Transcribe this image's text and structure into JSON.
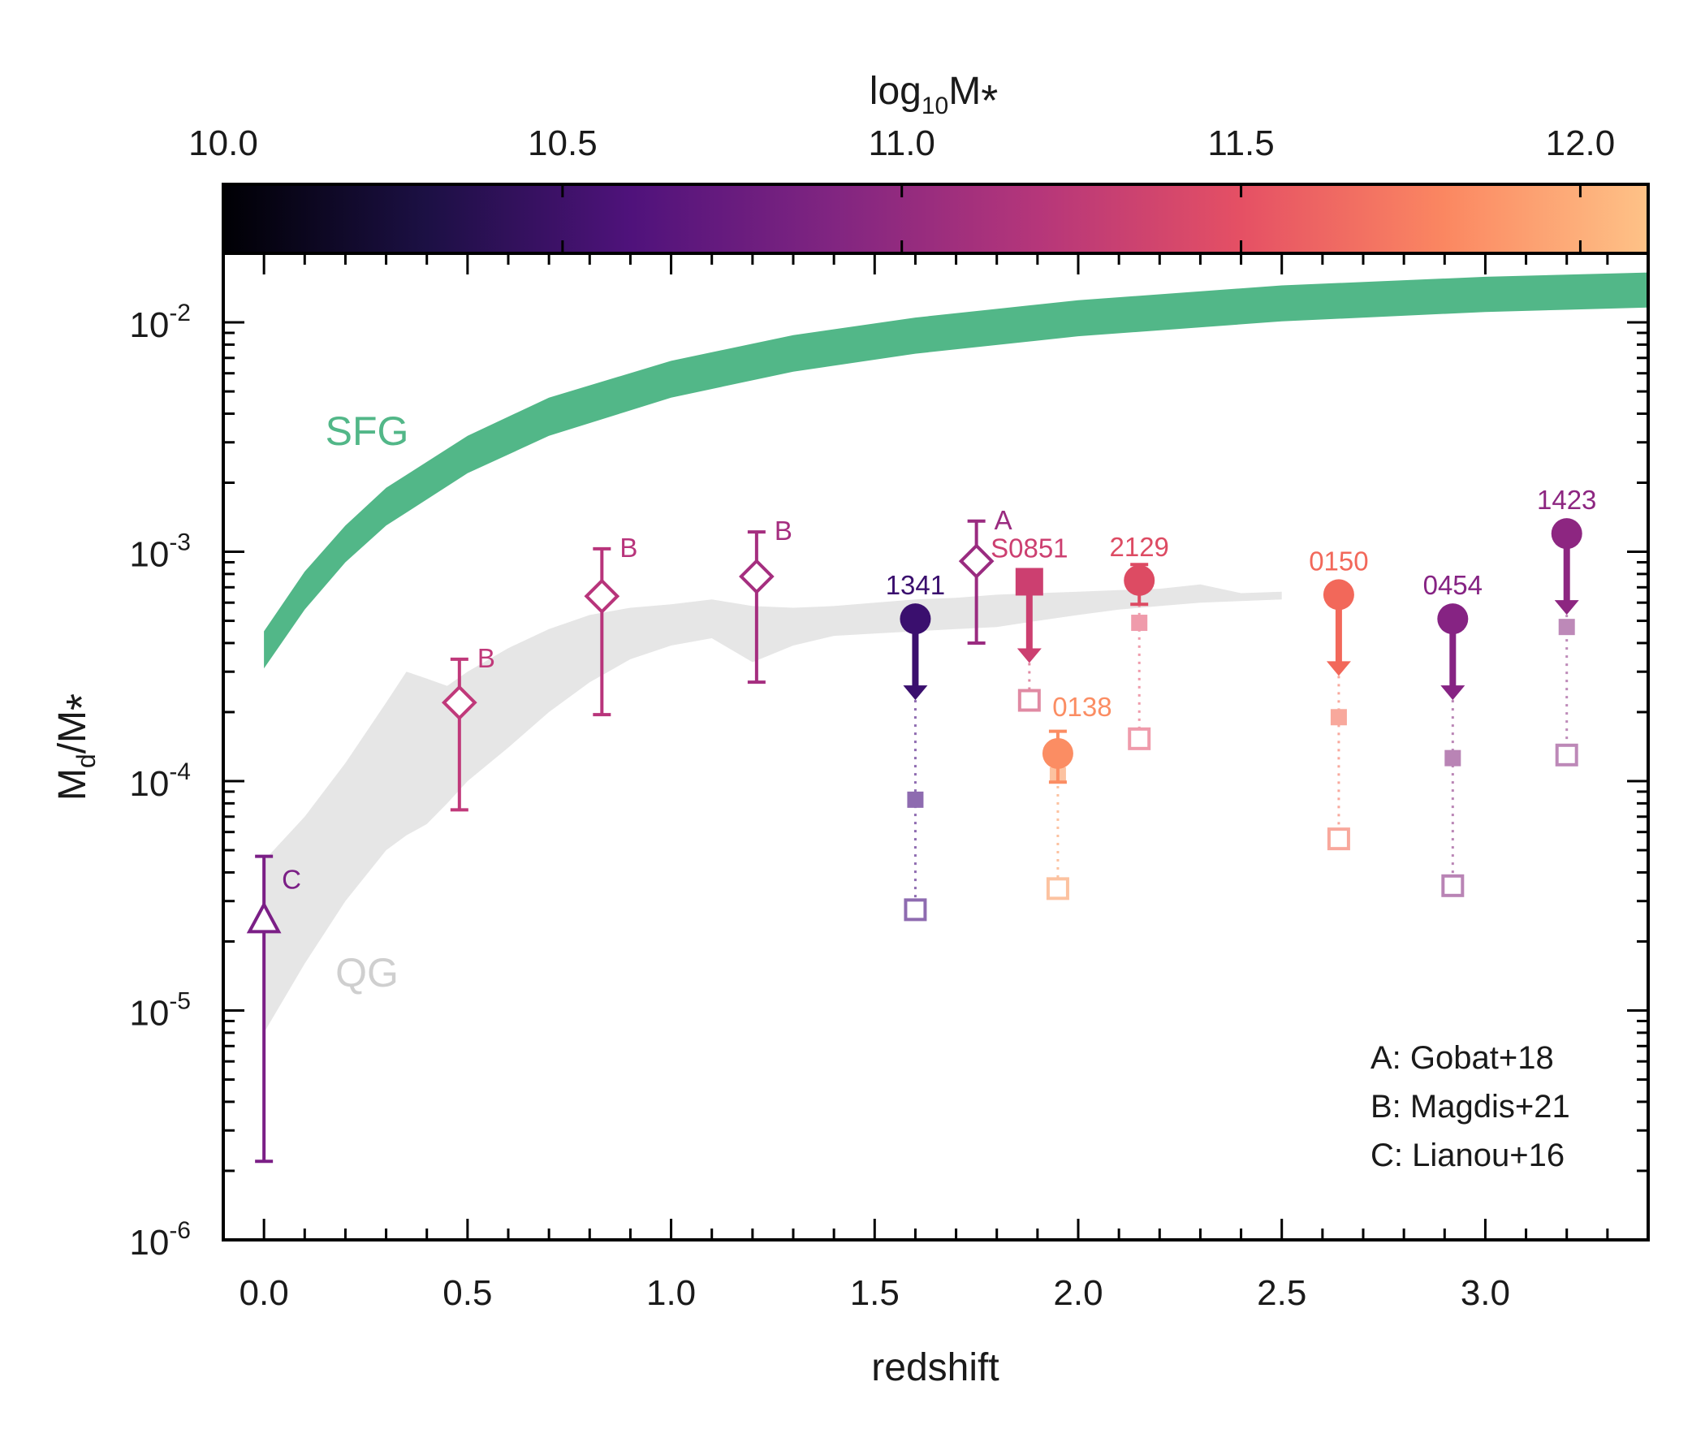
{
  "chart_data": {
    "type": "scatter",
    "xlabel": "redshift",
    "ylabel_main": "M",
    "ylabel_sub": "d",
    "ylabel_sep": "/M",
    "ylabel_star": "*",
    "xlim": [
      -0.1,
      3.4
    ],
    "ylim": [
      1e-06,
      0.02
    ],
    "yscale": "log",
    "x_ticks": [
      {
        "v": 0.0,
        "label": "0.0"
      },
      {
        "v": 0.5,
        "label": "0.5"
      },
      {
        "v": 1.0,
        "label": "1.0"
      },
      {
        "v": 1.5,
        "label": "1.5"
      },
      {
        "v": 2.0,
        "label": "2.0"
      },
      {
        "v": 2.5,
        "label": "2.5"
      },
      {
        "v": 3.0,
        "label": "3.0"
      }
    ],
    "y_ticks": [
      {
        "v": 1e-06,
        "base": "10",
        "exp": "-6"
      },
      {
        "v": 1e-05,
        "base": "10",
        "exp": "-5"
      },
      {
        "v": 0.0001,
        "base": "10",
        "exp": "-4"
      },
      {
        "v": 0.001,
        "base": "10",
        "exp": "-3"
      },
      {
        "v": 0.01,
        "base": "10",
        "exp": "-2"
      }
    ],
    "colorbar": {
      "title_main": "log",
      "title_sub": "10",
      "title_rest": "M",
      "title_star": "*",
      "range": [
        10.0,
        12.1
      ],
      "ticks": [
        {
          "v": 10.0,
          "label": "10.0"
        },
        {
          "v": 10.5,
          "label": "10.5"
        },
        {
          "v": 11.0,
          "label": "11.0"
        },
        {
          "v": 11.5,
          "label": "11.5"
        },
        {
          "v": 12.0,
          "label": "12.0"
        }
      ],
      "colormap_stops": [
        "#000004",
        "#1c1044",
        "#4f127b",
        "#812581",
        "#b5367a",
        "#e55064",
        "#fb8761",
        "#fec287"
      ]
    },
    "bands": [
      {
        "label": "SFG",
        "color": "#52b788",
        "x": [
          0.0,
          0.1,
          0.2,
          0.3,
          0.5,
          0.7,
          1.0,
          1.3,
          1.6,
          2.0,
          2.5,
          3.0,
          3.4
        ],
        "upper": [
          0.00045,
          0.00082,
          0.0013,
          0.0019,
          0.0032,
          0.0047,
          0.0068,
          0.0088,
          0.0105,
          0.0125,
          0.0145,
          0.0158,
          0.0165
        ],
        "lower": [
          0.00031,
          0.00056,
          0.0009,
          0.0013,
          0.0022,
          0.0032,
          0.0047,
          0.0061,
          0.0073,
          0.0087,
          0.0101,
          0.0111,
          0.0116
        ]
      },
      {
        "label": "QG",
        "color": "#e6e6e6",
        "x": [
          0.0,
          0.1,
          0.2,
          0.3,
          0.35,
          0.4,
          0.45,
          0.5,
          0.6,
          0.7,
          0.8,
          0.9,
          1.0,
          1.1,
          1.2,
          1.3,
          1.4,
          1.5,
          1.6,
          1.7,
          1.8,
          1.9,
          2.0,
          2.1,
          2.2,
          2.3,
          2.4,
          2.5
        ],
        "upper": [
          4.5e-05,
          7e-05,
          0.00012,
          0.00022,
          0.0003,
          0.00028,
          0.00026,
          0.0003,
          0.00038,
          0.00046,
          0.00053,
          0.00057,
          0.00059,
          0.00062,
          0.00058,
          0.00057,
          0.00058,
          0.0006,
          0.00062,
          0.00063,
          0.00065,
          0.00066,
          0.00067,
          0.00068,
          0.00069,
          0.00072,
          0.00066,
          0.00067
        ],
        "lower": [
          8e-06,
          1.6e-05,
          3e-05,
          5e-05,
          5.8e-05,
          6.5e-05,
          8e-05,
          0.0001,
          0.00014,
          0.0002,
          0.00027,
          0.00034,
          0.00039,
          0.00042,
          0.00033,
          0.00039,
          0.00043,
          0.00044,
          0.00045,
          0.00046,
          0.00047,
          0.0005,
          0.00053,
          0.00056,
          0.00058,
          0.0006,
          0.00061,
          0.00062
        ]
      }
    ],
    "literature": [
      {
        "marker": "triangle",
        "label": "C",
        "color": "#7b1f86",
        "x": 0.0,
        "y": 2.5e-05,
        "ylo": 2.2e-06,
        "yhi": 4.7e-05
      },
      {
        "marker": "diamond",
        "label": "B",
        "color": "#c0397a",
        "x": 0.48,
        "y": 0.00022,
        "ylo": 7.5e-05,
        "yhi": 0.00034
      },
      {
        "marker": "diamond",
        "label": "B",
        "color": "#b8347b",
        "x": 0.83,
        "y": 0.00064,
        "ylo": 0.000195,
        "yhi": 0.00103
      },
      {
        "marker": "diamond",
        "label": "B",
        "color": "#a52e7f",
        "x": 1.21,
        "y": 0.00078,
        "ylo": 0.00027,
        "yhi": 0.00122
      },
      {
        "marker": "diamond",
        "label": "A",
        "color": "#9a2b80",
        "x": 1.75,
        "y": 0.00091,
        "ylo": 0.0004,
        "yhi": 0.00136
      }
    ],
    "sample": [
      {
        "id": "1341",
        "color": "#3a0f6e",
        "light": "#8e6bb0",
        "x": 1.6,
        "y": 0.00051,
        "upper_limit": true,
        "sq_filled": 8.3e-05,
        "sq_open": 2.75e-05
      },
      {
        "id": "S0851",
        "color": "#cc3f70",
        "light": "#e08aa3",
        "x": 1.88,
        "y": 0.00074,
        "upper_limit": true,
        "marker": "square",
        "sq_open": 0.000225
      },
      {
        "id": "0138",
        "color": "#fb8d63",
        "light": "#fcc2a0",
        "x": 1.95,
        "y": 0.000132,
        "upper_limit": false,
        "err_hi": 0.000165,
        "err_lo": 9.9e-05,
        "sq_filled": 0.000106,
        "sq_open": 3.4e-05
      },
      {
        "id": "2129",
        "color": "#dd4b63",
        "light": "#ef9bab",
        "x": 2.15,
        "y": 0.00075,
        "upper_limit": false,
        "err_hi": 0.00088,
        "err_lo": 0.00059,
        "sq_filled": 0.00049,
        "sq_open": 0.000153
      },
      {
        "id": "0150",
        "color": "#f2685a",
        "light": "#f8a89c",
        "x": 2.64,
        "y": 0.00065,
        "upper_limit": true,
        "sq_filled": 0.00019,
        "sq_open": 5.6e-05
      },
      {
        "id": "0454",
        "color": "#862383",
        "light": "#b984b5",
        "x": 2.92,
        "y": 0.00051,
        "upper_limit": true,
        "sq_filled": 0.000126,
        "sq_open": 3.5e-05
      },
      {
        "id": "1423",
        "color": "#8d2681",
        "light": "#bd89b8",
        "x": 3.2,
        "y": 0.0012,
        "upper_limit": true,
        "sq_filled": 0.00047,
        "sq_open": 0.00013
      }
    ],
    "band_labels": [
      {
        "text": "SFG",
        "color": "#52b788"
      },
      {
        "text": "QG",
        "color": "#cfcfcf"
      }
    ],
    "legend": [
      "A: Gobat+18",
      "B: Magdis+21",
      "C: Lianou+16"
    ],
    "legend_position": "bottom-right"
  }
}
